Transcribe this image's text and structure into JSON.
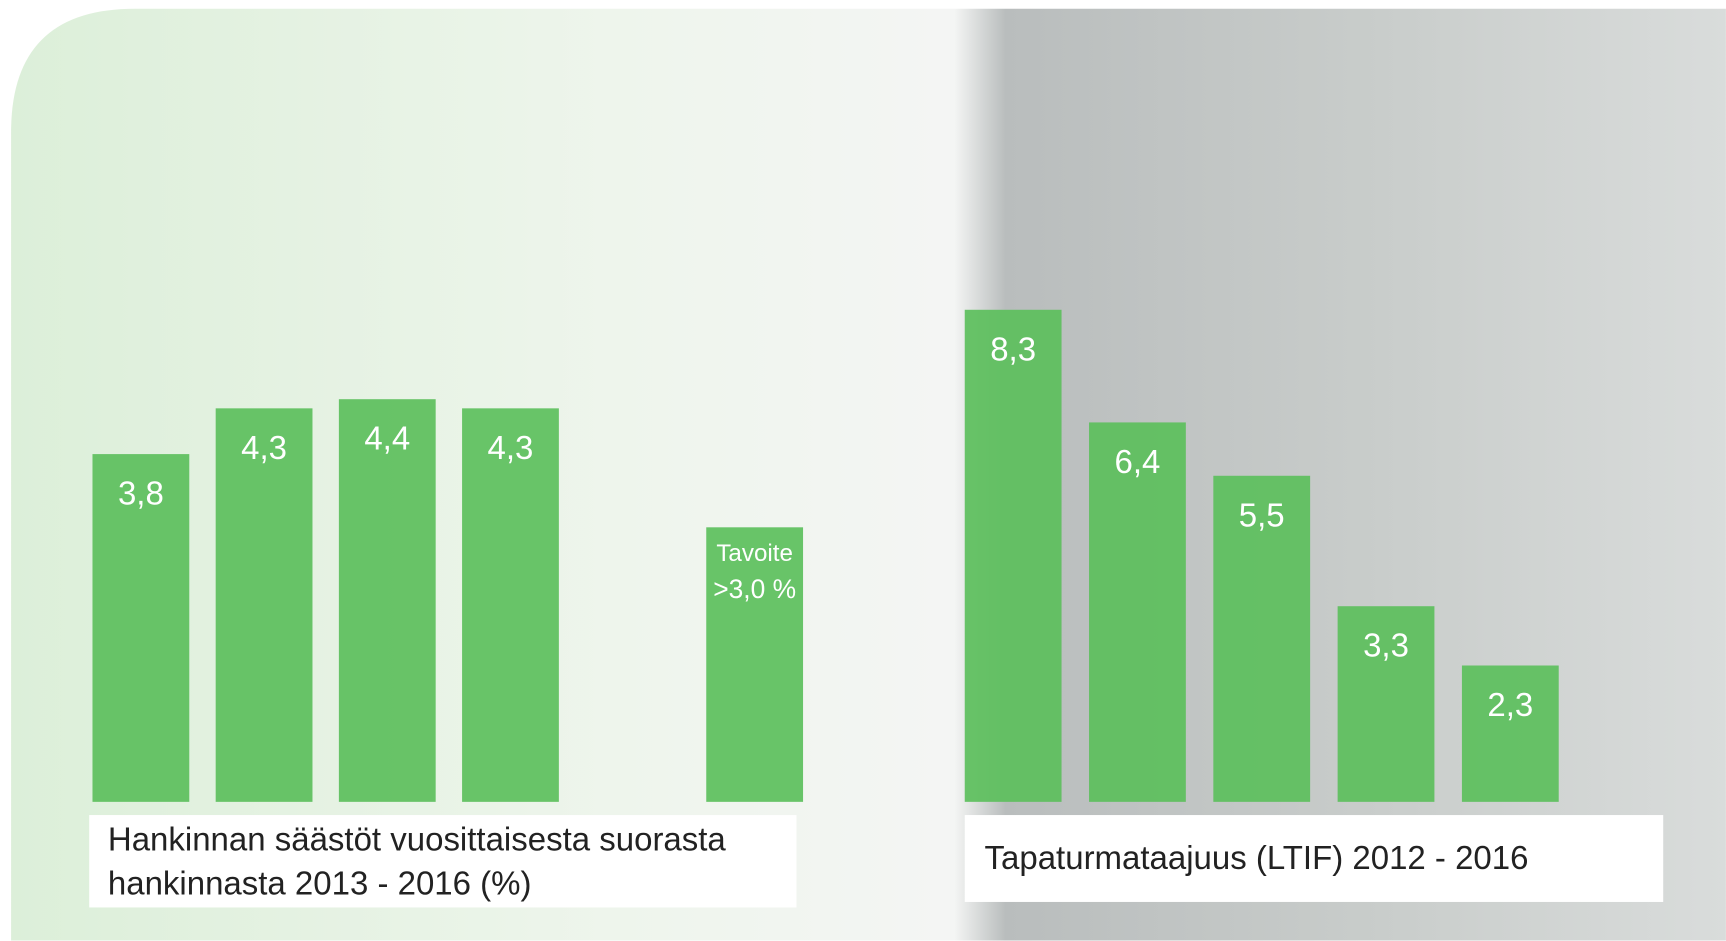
{
  "chart_data": [
    {
      "type": "bar",
      "title": "Hankinnan säästöt vuosittaisesta suorasta hankinnasta 2013 - 2016 (%)",
      "categories": [
        null,
        null,
        null,
        null
      ],
      "values": [
        3.8,
        4.3,
        4.4,
        4.3
      ],
      "value_labels": [
        "3,8",
        "4,3",
        "4,4",
        "4,3"
      ],
      "color": "#5cbf5c",
      "ylim": [
        0,
        5
      ],
      "target": {
        "label": "Tavoite",
        "value": 3.0,
        "value_label": ">3,0 %"
      }
    },
    {
      "type": "bar",
      "title": "Tapaturmataajuus (LTIF) 2012 - 2016",
      "categories": [
        null,
        null,
        null,
        null,
        null
      ],
      "values": [
        8.3,
        6.4,
        5.5,
        3.3,
        2.3
      ],
      "value_labels": [
        "8,3",
        "6,4",
        "5,5",
        "3,3",
        "2,3"
      ],
      "color": "#5cbf5c",
      "ylim": [
        0,
        10
      ]
    }
  ]
}
